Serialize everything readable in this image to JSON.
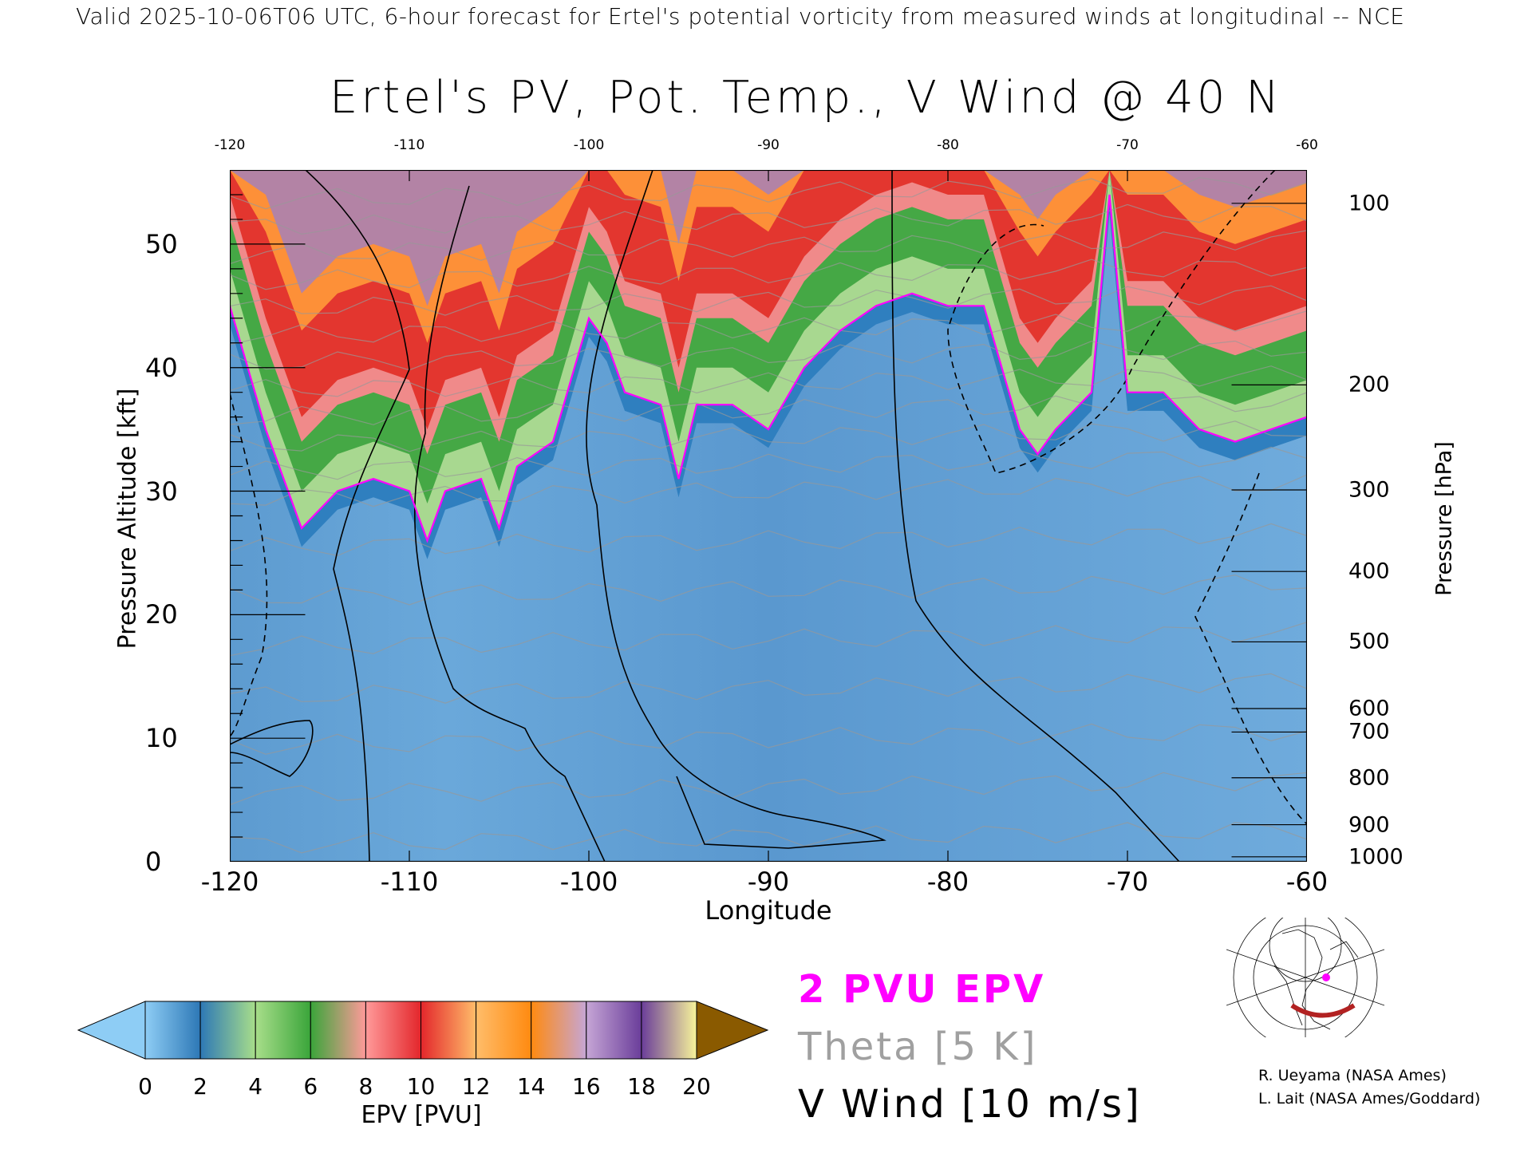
{
  "header": {
    "valid_line": "Valid 2025-10-06T06 UTC, 6-hour forecast for Ertel's potential vorticity from measured winds at longitudinal -- NCE"
  },
  "chart_data": {
    "type": "heatmap",
    "title": "Ertel's PV, Pot. Temp., V Wind @ 40 N",
    "xlabel": "Longitude",
    "ylabel": "Pressure Altitude [kft]",
    "y2label": "Pressure [hPa]",
    "xlim": [
      -120,
      -60
    ],
    "ylim": [
      0,
      56
    ],
    "x_ticks": [
      "-120",
      "-110",
      "-100",
      "-90",
      "-80",
      "-70",
      "-60"
    ],
    "x_tick_values": [
      -120,
      -110,
      -100,
      -90,
      -80,
      -70,
      -60
    ],
    "top_ticks": [
      "-120",
      "-110",
      "-100",
      "-90",
      "-80",
      "-70",
      "-60"
    ],
    "y_ticks": [
      "0",
      "10",
      "20",
      "30",
      "40",
      "50"
    ],
    "y_tick_values": [
      0,
      10,
      20,
      30,
      40,
      50
    ],
    "y2_ticks": [
      "100",
      "200",
      "300",
      "400",
      "500",
      "600",
      "700",
      "800",
      "900",
      "1000"
    ],
    "y2_tick_kft": [
      53.3,
      38.6,
      30.1,
      23.5,
      17.8,
      12.4,
      10.5,
      6.8,
      3.0,
      0.4
    ],
    "tropopause_2pvu": {
      "lon": [
        -120,
        -118,
        -116,
        -114,
        -112,
        -110,
        -109,
        -108,
        -106,
        -105,
        -104,
        -102,
        -100,
        -99,
        -98,
        -96,
        -95,
        -94,
        -92,
        -90,
        -88,
        -86,
        -84,
        -82,
        -80,
        -78,
        -76,
        -75,
        -74,
        -72,
        -71,
        -70,
        -68,
        -66,
        -64,
        -62,
        -60
      ],
      "kft": [
        45,
        35,
        27,
        30,
        31,
        30,
        26,
        30,
        31,
        27,
        32,
        34,
        44,
        42,
        38,
        37,
        31,
        37,
        37,
        35,
        40,
        43,
        45,
        46,
        45,
        45,
        35,
        33,
        35,
        38,
        54,
        38,
        38,
        35,
        34,
        35,
        36
      ]
    },
    "colorbar": {
      "label": "EPV [PVU]",
      "ticks": [
        "0",
        "2",
        "4",
        "6",
        "8",
        "10",
        "12",
        "14",
        "16",
        "18",
        "20"
      ],
      "range": [
        0,
        20
      ],
      "colors": [
        "#8ecdf5",
        "#2d78b6",
        "#a8de8a",
        "#3aa53a",
        "#ff9a9a",
        "#e3262b",
        "#ffbd6a",
        "#ff8a10",
        "#c6a6d6",
        "#6a3d9a",
        "#f8f49a",
        "#8a5a00"
      ]
    },
    "legend": [
      {
        "label": "2 PVU EPV",
        "color": "#ff00ff"
      },
      {
        "label": "Theta [5 K]",
        "color": "#a0a0a0"
      },
      {
        "label": "V Wind [10 m/s]",
        "color": "#000000"
      }
    ]
  },
  "credits": [
    "R. Ueyama (NASA Ames)",
    "L. Lait (NASA Ames/Goddard)"
  ]
}
